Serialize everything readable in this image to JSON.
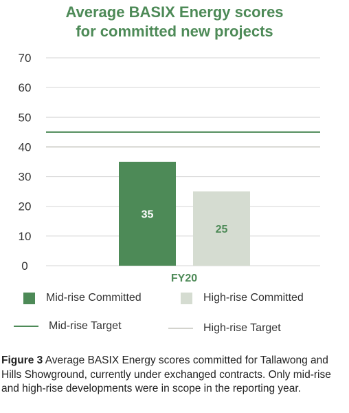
{
  "title": {
    "line1": "Average BASIX Energy scores",
    "line2": "for committed new projects"
  },
  "colors": {
    "title": "#4d8a57",
    "mid_rise": "#4d8a57",
    "high_rise": "#d5dcd1",
    "grid": "#d6d6d6",
    "mid_target": "#4d8a57",
    "high_target": "#d3d3cd"
  },
  "legend": {
    "mid_committed": "Mid-rise Committed",
    "high_committed": "High-rise Committed",
    "mid_target": "Mid-rise Target",
    "high_target": "High-rise Target"
  },
  "caption": {
    "label": "Figure 3",
    "text": " Average BASIX Energy scores committed for Tallawong and Hills Showground, currently under exchanged contracts. Only mid-rise and high-rise developments were in scope in the reporting year."
  },
  "chart_data": {
    "type": "bar",
    "categories": [
      "FY20"
    ],
    "series": [
      {
        "name": "Mid-rise Committed",
        "values": [
          35
        ]
      },
      {
        "name": "High-rise Committed",
        "values": [
          25
        ]
      }
    ],
    "targets": [
      {
        "name": "Mid-rise Target",
        "value": 45
      },
      {
        "name": "High-rise Target",
        "value": 40
      }
    ],
    "ylim": [
      0,
      70
    ],
    "yticks": [
      0,
      10,
      20,
      30,
      40,
      50,
      60,
      70
    ],
    "grid": true,
    "legend_position": "bottom"
  }
}
